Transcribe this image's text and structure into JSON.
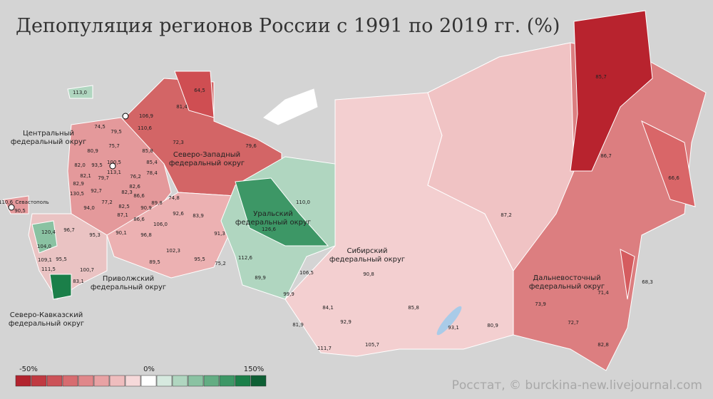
{
  "header": {
    "title": "Депопуляция регионов России с 1991 по 2019 гг. (%)"
  },
  "districts": [
    {
      "lines": [
        "Центральный",
        "федеральный округ"
      ]
    },
    {
      "lines": [
        "Северо-Западный",
        "федеральный округ"
      ]
    },
    {
      "lines": [
        "Уральский",
        "федеральный округ"
      ]
    },
    {
      "lines": [
        "Сибирский",
        "федеральный округ"
      ]
    },
    {
      "lines": [
        "Дальневосточный",
        "федеральный округ"
      ]
    },
    {
      "lines": [
        "Приволжский",
        "федеральный округ"
      ]
    },
    {
      "lines": [
        "Северо-Кавказский",
        "федеральный округ"
      ]
    }
  ],
  "places": [
    "Севастополь"
  ],
  "regions": [
    "113,0",
    "64,5",
    "81,4",
    "106,9",
    "110,6",
    "74,5",
    "79,5",
    "72,3",
    "75,7",
    "80,9",
    "85,8",
    "79,6",
    "93,5",
    "85,4",
    "100,5",
    "82,0",
    "113,1",
    "76,2",
    "78,4",
    "82,1",
    "79,7",
    "82,9",
    "82,6",
    "82,3",
    "92,7",
    "130,5",
    "86,6",
    "77,2",
    "82,5",
    "90,9",
    "74,8",
    "89,8",
    "94,0",
    "87,1",
    "86,6",
    "92,6",
    "83,9",
    "106,0",
    "110,0",
    "96,7",
    "120,4",
    "95,3",
    "90,1",
    "96,8",
    "91,3",
    "126,6",
    "104,0",
    "102,3",
    "95,5",
    "89,5",
    "95,5",
    "112,6",
    "75,2",
    "109,1",
    "111,5",
    "100,7",
    "106,5",
    "89,9",
    "83,1",
    "99,9",
    "84,1",
    "81,9",
    "92,9",
    "111,7",
    "105,7",
    "90,8",
    "85,8",
    "93,1",
    "80,9",
    "87,2",
    "73,9",
    "71,4",
    "72,7",
    "82,8",
    "68,3",
    "66,6",
    "86,7",
    "85,7",
    "110,6",
    "90,5"
  ],
  "legend": {
    "labels": [
      "-50%",
      "0%",
      "150%"
    ],
    "colors": [
      "#b2232e",
      "#c03a42",
      "#cc5258",
      "#d76c70",
      "#e0878a",
      "#e8a2a4",
      "#efbdbe",
      "#f6d9da",
      "#ffffff",
      "#d6e9df",
      "#b0d6c0",
      "#8ac2a2",
      "#63ad83",
      "#3d9766",
      "#1b7f49",
      "#0e5f34"
    ]
  },
  "source": "Росстат, © burckina-new.livejournal.com"
}
